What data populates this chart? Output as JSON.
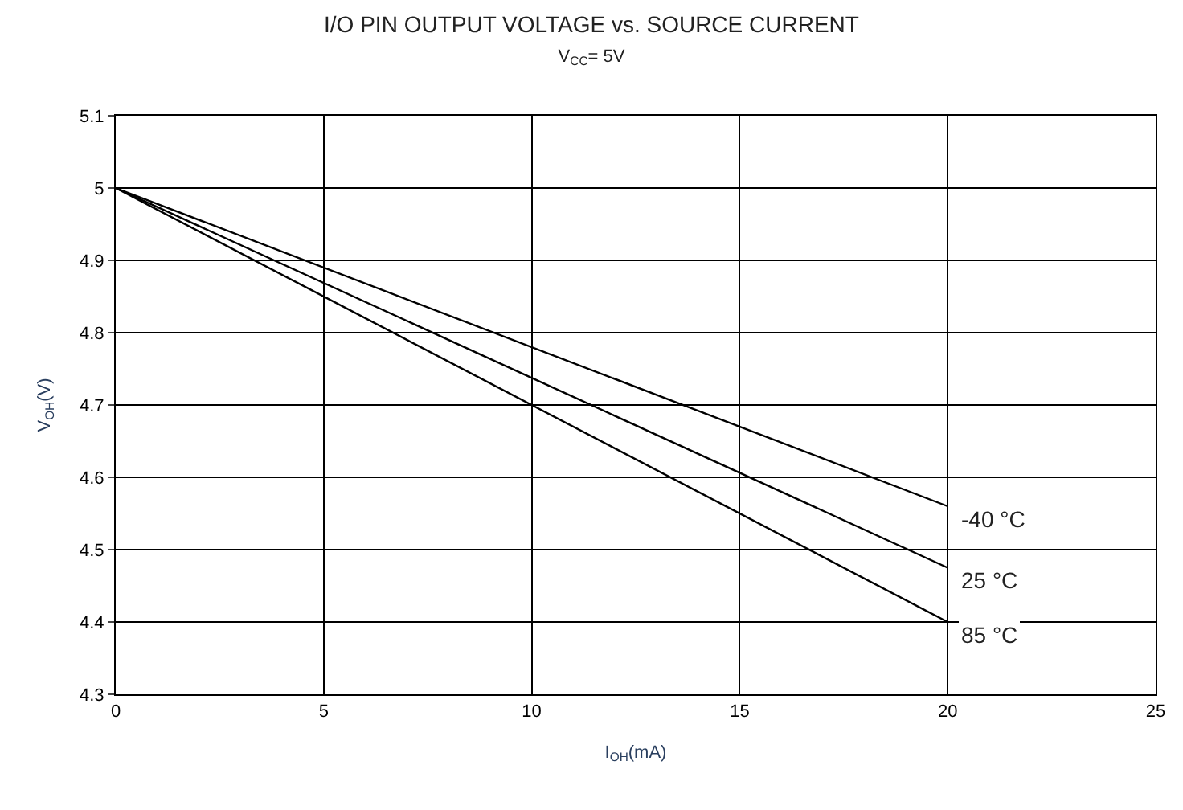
{
  "chart_data": {
    "type": "line",
    "title": "I/O PIN OUTPUT VOLTAGE vs. SOURCE CURRENT",
    "subtitle": "V$_{CC}$= 5V",
    "xlabel": "I$_{OH}$(mA)",
    "ylabel": "V$_{OH}$(V)",
    "x": [
      0,
      20
    ],
    "series": [
      {
        "name": "-40 °C",
        "color": "#000000",
        "values": [
          5,
          4.56
        ]
      },
      {
        "name": "25 °C",
        "color": "#000000",
        "values": [
          5,
          4.475
        ]
      },
      {
        "name": "85 °C",
        "color": "#000000",
        "values": [
          5,
          4.4
        ]
      }
    ],
    "xlim": [
      0,
      25
    ],
    "xticks": [
      0,
      5,
      10,
      15,
      20,
      25
    ],
    "ylim": [
      4.3,
      5.1
    ],
    "yticks": [
      4.3,
      4.4,
      4.5,
      4.6,
      4.7,
      4.8,
      4.9,
      5,
      5.1
    ],
    "grid": true,
    "legend": false,
    "marker": "none",
    "line_style": "solid"
  }
}
